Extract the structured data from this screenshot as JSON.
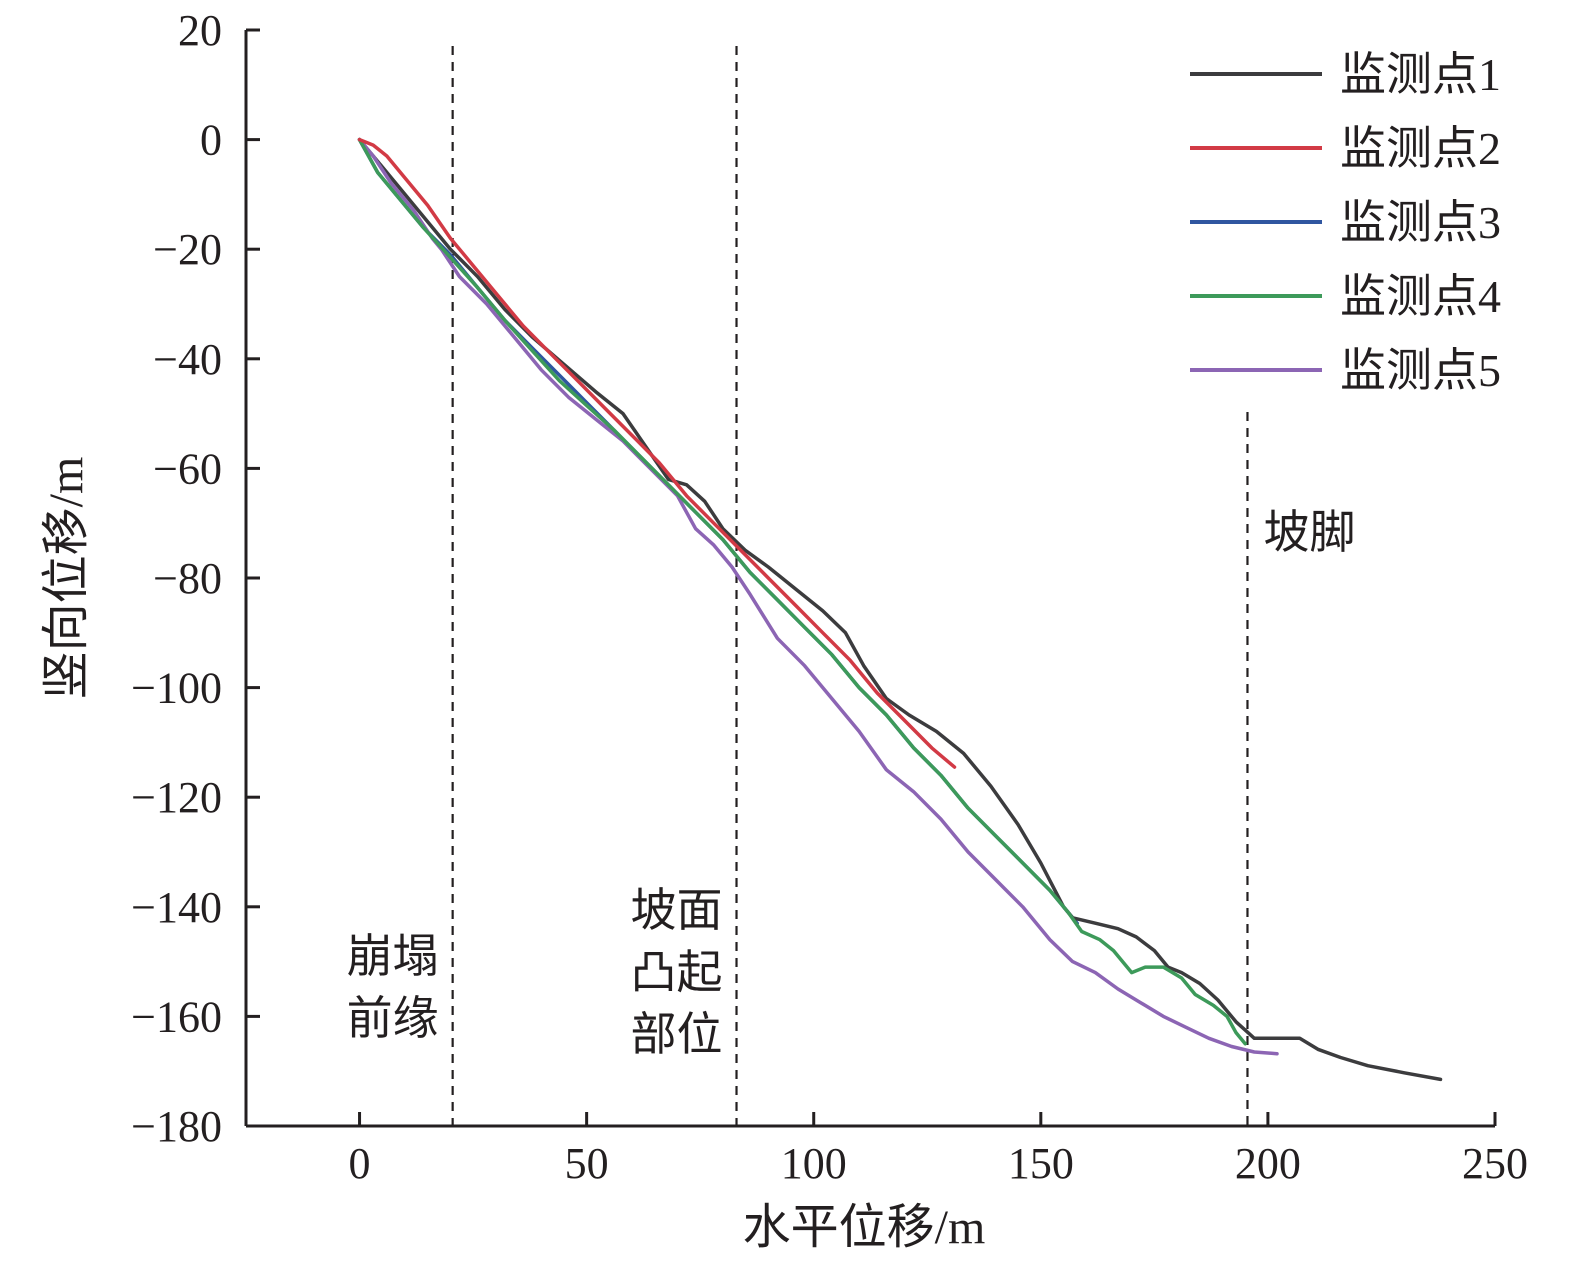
{
  "chart_data": {
    "type": "line",
    "xlabel": "水平位移/m",
    "ylabel": "竖向位移/m",
    "xlim": [
      -25,
      250
    ],
    "ylim": [
      -180,
      20
    ],
    "xticks": [
      0,
      50,
      100,
      150,
      200,
      250
    ],
    "yticks": [
      20,
      0,
      -20,
      -40,
      -60,
      -80,
      -100,
      -120,
      -140,
      -160,
      -180
    ],
    "xtick_labels": [
      "0",
      "50",
      "100",
      "150",
      "200",
      "250"
    ],
    "ytick_labels": [
      "20",
      "0",
      "−20",
      "−40",
      "−60",
      "−80",
      "−100",
      "−120",
      "−140",
      "−160",
      "−180"
    ],
    "legend_position": "top-right",
    "vertical_lines": [
      {
        "x": 20.5,
        "label_lines": [
          "崩塌",
          "前缘"
        ],
        "label_side": "left"
      },
      {
        "x": 83,
        "label_lines": [
          "坡面",
          "凸起",
          "部位"
        ],
        "label_side": "left"
      },
      {
        "x": 195.5,
        "label_lines": [
          "坡脚"
        ],
        "label_side": "right"
      }
    ],
    "series": [
      {
        "name": "监测点1",
        "color": "#3c3c3e",
        "points": [
          [
            0,
            0
          ],
          [
            3,
            -3
          ],
          [
            8,
            -8
          ],
          [
            14,
            -14
          ],
          [
            20,
            -20
          ],
          [
            26,
            -25
          ],
          [
            32,
            -31
          ],
          [
            38,
            -36
          ],
          [
            45,
            -41
          ],
          [
            52,
            -46
          ],
          [
            58,
            -50
          ],
          [
            63,
            -56
          ],
          [
            68,
            -62
          ],
          [
            72,
            -63
          ],
          [
            76,
            -66
          ],
          [
            80,
            -71
          ],
          [
            85,
            -75
          ],
          [
            90,
            -78
          ],
          [
            96,
            -82
          ],
          [
            102,
            -86
          ],
          [
            107,
            -90
          ],
          [
            111,
            -96
          ],
          [
            116,
            -102
          ],
          [
            121,
            -105
          ],
          [
            127,
            -108
          ],
          [
            133,
            -112
          ],
          [
            139,
            -118
          ],
          [
            145,
            -125
          ],
          [
            150,
            -132
          ],
          [
            155,
            -140
          ],
          [
            157,
            -142
          ],
          [
            162,
            -143
          ],
          [
            167,
            -144
          ],
          [
            171,
            -145.5
          ],
          [
            175,
            -148
          ],
          [
            178,
            -151
          ],
          [
            181,
            -152
          ],
          [
            185,
            -154
          ],
          [
            189,
            -157
          ],
          [
            193,
            -161
          ],
          [
            195,
            -162.5
          ],
          [
            197,
            -164
          ],
          [
            200,
            -164
          ],
          [
            204,
            -164
          ],
          [
            207,
            -164
          ],
          [
            211,
            -166
          ],
          [
            216,
            -167.5
          ],
          [
            222,
            -169
          ],
          [
            230,
            -170.3
          ],
          [
            238,
            -171.5
          ]
        ]
      },
      {
        "name": "监测点2",
        "color": "#d23a45",
        "points": [
          [
            0,
            0
          ],
          [
            3,
            -1
          ],
          [
            6,
            -3
          ],
          [
            10,
            -7
          ],
          [
            15,
            -12
          ],
          [
            20,
            -18
          ],
          [
            25,
            -23
          ],
          [
            30,
            -28
          ],
          [
            36,
            -34
          ],
          [
            42,
            -39
          ],
          [
            48,
            -44
          ],
          [
            54,
            -49
          ],
          [
            60,
            -54
          ],
          [
            66,
            -59
          ],
          [
            72,
            -65
          ],
          [
            78,
            -70
          ],
          [
            84,
            -75
          ],
          [
            90,
            -80
          ],
          [
            96,
            -85
          ],
          [
            102,
            -90
          ],
          [
            108,
            -95
          ],
          [
            114,
            -101
          ],
          [
            120,
            -106
          ],
          [
            126,
            -111
          ],
          [
            131,
            -114.5
          ]
        ]
      },
      {
        "name": "监测点3",
        "color": "#3056a0",
        "points": [
          [
            0,
            0
          ],
          [
            4,
            -6
          ],
          [
            9,
            -11
          ],
          [
            14,
            -16
          ],
          [
            20,
            -21
          ],
          [
            26,
            -27
          ],
          [
            32,
            -33
          ],
          [
            38,
            -38
          ],
          [
            44,
            -43
          ],
          [
            50,
            -48
          ],
          [
            56,
            -53
          ],
          [
            62,
            -58
          ],
          [
            68,
            -63
          ],
          [
            74,
            -68
          ],
          [
            80,
            -73
          ],
          [
            86,
            -79
          ],
          [
            92,
            -84
          ],
          [
            98,
            -89
          ],
          [
            104,
            -94
          ],
          [
            110,
            -100
          ],
          [
            116,
            -105
          ],
          [
            122,
            -111
          ],
          [
            128,
            -116
          ],
          [
            134,
            -122
          ],
          [
            140,
            -127
          ],
          [
            146,
            -132
          ],
          [
            152,
            -137
          ],
          [
            158,
            -143
          ]
        ]
      },
      {
        "name": "监测点4",
        "color": "#3d9a5a",
        "points": [
          [
            0,
            0
          ],
          [
            4,
            -6
          ],
          [
            9,
            -11
          ],
          [
            14,
            -16
          ],
          [
            20,
            -21.5
          ],
          [
            26,
            -27
          ],
          [
            32,
            -33
          ],
          [
            38,
            -38.5
          ],
          [
            44,
            -44
          ],
          [
            50,
            -48.5
          ],
          [
            56,
            -53
          ],
          [
            62,
            -58
          ],
          [
            68,
            -63
          ],
          [
            74,
            -68
          ],
          [
            80,
            -73
          ],
          [
            86,
            -79
          ],
          [
            92,
            -84
          ],
          [
            98,
            -89
          ],
          [
            104,
            -94
          ],
          [
            110,
            -100
          ],
          [
            116,
            -105
          ],
          [
            122,
            -111
          ],
          [
            128,
            -116
          ],
          [
            134,
            -122
          ],
          [
            140,
            -127
          ],
          [
            146,
            -132
          ],
          [
            152,
            -137
          ],
          [
            156,
            -141
          ],
          [
            159,
            -144.5
          ],
          [
            163,
            -146
          ],
          [
            166,
            -148
          ],
          [
            170,
            -152
          ],
          [
            173,
            -151
          ],
          [
            177,
            -151
          ],
          [
            181,
            -153
          ],
          [
            184,
            -156
          ],
          [
            188,
            -158
          ],
          [
            191,
            -160
          ],
          [
            193,
            -163
          ],
          [
            195,
            -165
          ]
        ]
      },
      {
        "name": "监测点5",
        "color": "#8c65b4",
        "points": [
          [
            0,
            0
          ],
          [
            3,
            -3
          ],
          [
            7,
            -8
          ],
          [
            12,
            -13
          ],
          [
            16,
            -18
          ],
          [
            18,
            -20
          ],
          [
            22,
            -25
          ],
          [
            28,
            -30
          ],
          [
            34,
            -36
          ],
          [
            40,
            -42
          ],
          [
            46,
            -47
          ],
          [
            52,
            -51
          ],
          [
            58,
            -55
          ],
          [
            64,
            -60
          ],
          [
            70,
            -65
          ],
          [
            74,
            -71
          ],
          [
            78,
            -74
          ],
          [
            82,
            -78
          ],
          [
            86,
            -83
          ],
          [
            92,
            -91
          ],
          [
            98,
            -96
          ],
          [
            104,
            -102
          ],
          [
            110,
            -108
          ],
          [
            116,
            -115
          ],
          [
            122,
            -119
          ],
          [
            128,
            -124
          ],
          [
            134,
            -130
          ],
          [
            140,
            -135
          ],
          [
            146,
            -140
          ],
          [
            152,
            -146
          ],
          [
            157,
            -150
          ],
          [
            162,
            -152
          ],
          [
            167,
            -155
          ],
          [
            172,
            -157.5
          ],
          [
            177,
            -160
          ],
          [
            182,
            -162
          ],
          [
            187,
            -164
          ],
          [
            192,
            -165.5
          ],
          [
            197,
            -166.5
          ],
          [
            202,
            -166.8
          ]
        ]
      }
    ]
  }
}
